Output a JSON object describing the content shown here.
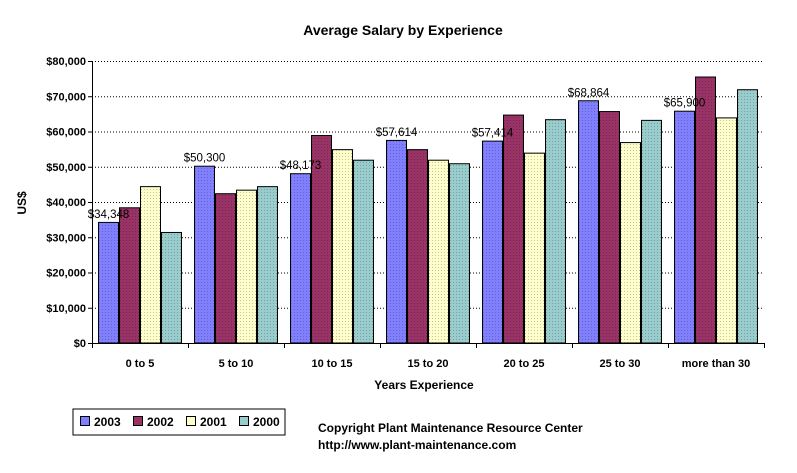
{
  "chart_data": {
    "type": "bar",
    "title": "Average Salary by Experience",
    "xlabel": "Years Experience",
    "ylabel": "US$",
    "ylim": [
      0,
      80000
    ],
    "yticks": [
      0,
      10000,
      20000,
      30000,
      40000,
      50000,
      60000,
      70000,
      80000
    ],
    "ytick_labels": [
      "$0",
      "$10,000",
      "$20,000",
      "$30,000",
      "$40,000",
      "$50,000",
      "$60,000",
      "$70,000",
      "$80,000"
    ],
    "grid": "horizontal dotted",
    "legend_position": "bottom-left",
    "categories": [
      "0 to 5",
      "5 to 10",
      "10 to 15",
      "15 to 20",
      "20 to 25",
      "25 to 30",
      "more than 30"
    ],
    "series": [
      {
        "name": "2003",
        "color": "#8080ff",
        "values": [
          34348,
          50300,
          48173,
          57614,
          57414,
          68864,
          65900
        ]
      },
      {
        "name": "2002",
        "color": "#993366",
        "values": [
          38500,
          42500,
          59000,
          55000,
          64800,
          65800,
          75600
        ]
      },
      {
        "name": "2001",
        "color": "#ffffcc",
        "values": [
          44500,
          43500,
          55000,
          52000,
          54000,
          57000,
          64000
        ]
      },
      {
        "name": "2000",
        "color": "#99cccc",
        "values": [
          31500,
          44500,
          52000,
          51000,
          63500,
          63300,
          72000
        ]
      }
    ],
    "data_labels": [
      {
        "category": "0 to 5",
        "series": "2003",
        "text": "$34,348"
      },
      {
        "category": "5 to 10",
        "series": "2003",
        "text": "$50,300"
      },
      {
        "category": "10 to 15",
        "series": "2003",
        "text": "$48,173"
      },
      {
        "category": "15 to 20",
        "series": "2003",
        "text": "$57,614"
      },
      {
        "category": "20 to 25",
        "series": "2003",
        "text": "$57,414"
      },
      {
        "category": "25 to 30",
        "series": "2003",
        "text": "$68,864"
      },
      {
        "category": "more than 30",
        "series": "2003",
        "text": "$65,900"
      }
    ]
  },
  "footer": {
    "copyright": "Copyright Plant Maintenance Resource Center",
    "url": "http://www.plant-maintenance.com"
  }
}
